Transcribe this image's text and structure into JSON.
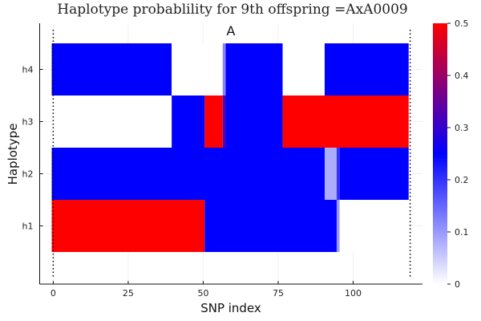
{
  "chart_data": {
    "type": "heatmap",
    "title": "Haplotype probablility for 9th offspring =AxA0009",
    "xlabel": "SNP index",
    "ylabel": "Haplotype",
    "annotation": "A",
    "xlim": [
      -0.5,
      119.5
    ],
    "x_ticks": [
      0,
      25,
      50,
      75,
      100
    ],
    "y_categories": [
      "h1",
      "h2",
      "h3",
      "h4"
    ],
    "colorbar": {
      "min": 0,
      "max": 0.5,
      "ticks": [
        0,
        0.1,
        0.2,
        0.3,
        0.4,
        0.5
      ],
      "colors": [
        "#ffffff",
        "#0000ff",
        "#ff0000"
      ]
    },
    "vertical_lines_x": [
      0,
      119
    ],
    "rows": [
      {
        "name": "h1",
        "segments": [
          {
            "x": [
              0,
              51
            ],
            "value": 0.5
          },
          {
            "x": [
              51,
              95
            ],
            "value": 0.25
          },
          {
            "x": [
              95,
              96
            ],
            "value": 0.1
          },
          {
            "x": [
              96,
              119
            ],
            "value": 0.0
          }
        ]
      },
      {
        "name": "h2",
        "segments": [
          {
            "x": [
              0,
              91
            ],
            "value": 0.25
          },
          {
            "x": [
              91,
              95
            ],
            "value": 0.08
          },
          {
            "x": [
              95,
              96
            ],
            "value": 0.2
          },
          {
            "x": [
              96,
              119
            ],
            "value": 0.25
          }
        ]
      },
      {
        "name": "h3",
        "segments": [
          {
            "x": [
              0,
              40
            ],
            "value": 0.0
          },
          {
            "x": [
              40,
              51
            ],
            "value": 0.25
          },
          {
            "x": [
              51,
              57
            ],
            "value": 0.5
          },
          {
            "x": [
              57,
              58
            ],
            "value": 0.33
          },
          {
            "x": [
              58,
              77
            ],
            "value": 0.25
          },
          {
            "x": [
              77,
              119
            ],
            "value": 0.5
          }
        ]
      },
      {
        "name": "h4",
        "segments": [
          {
            "x": [
              0,
              40
            ],
            "value": 0.25
          },
          {
            "x": [
              40,
              57
            ],
            "value": 0.0
          },
          {
            "x": [
              57,
              58
            ],
            "value": 0.12
          },
          {
            "x": [
              58,
              77
            ],
            "value": 0.25
          },
          {
            "x": [
              77,
              91
            ],
            "value": 0.0
          },
          {
            "x": [
              91,
              119
            ],
            "value": 0.25
          }
        ]
      }
    ]
  }
}
